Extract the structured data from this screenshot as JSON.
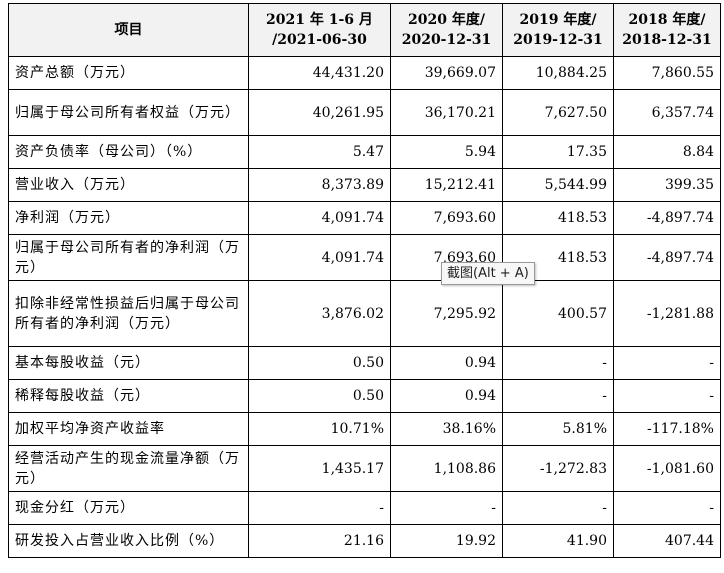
{
  "table": {
    "headers": [
      [
        "项目"
      ],
      [
        "2021 年 1-6 月",
        "/2021-06-30"
      ],
      [
        "2020 年度/",
        "2020-12-31"
      ],
      [
        "2019 年度/",
        "2019-12-31"
      ],
      [
        "2018 年度/",
        "2018-12-31"
      ]
    ],
    "rows": [
      {
        "label": "资产总额（万元）",
        "values": [
          "44,431.20",
          "39,669.07",
          "10,884.25",
          "7,860.55"
        ]
      },
      {
        "label": "归属于母公司所有者权益（万元）",
        "values": [
          "40,261.95",
          "36,170.21",
          "7,627.50",
          "6,357.74"
        ]
      },
      {
        "label": "资产负债率（母公司）（%）",
        "values": [
          "5.47",
          "5.94",
          "17.35",
          "8.84"
        ]
      },
      {
        "label": "营业收入（万元）",
        "values": [
          "8,373.89",
          "15,212.41",
          "5,544.99",
          "399.35"
        ]
      },
      {
        "label": "净利润（万元）",
        "values": [
          "4,091.74",
          "7,693.60",
          "418.53",
          "-4,897.74"
        ]
      },
      {
        "label": "归属于母公司所有者的净利润（万元）",
        "values": [
          "4,091.74",
          "7,693.60",
          "418.53",
          "-4,897.74"
        ]
      },
      {
        "label": "扣除非经常性损益后归属于母公司所有者的净利润（万元）",
        "values": [
          "3,876.02",
          "7,295.92",
          "400.57",
          "-1,281.88"
        ]
      },
      {
        "label": "基本每股收益（元）",
        "values": [
          "0.50",
          "0.94",
          "-",
          "-"
        ]
      },
      {
        "label": "稀释每股收益（元）",
        "values": [
          "0.50",
          "0.94",
          "-",
          "-"
        ]
      },
      {
        "label": "加权平均净资产收益率",
        "values": [
          "10.71%",
          "38.16%",
          "5.81%",
          "-117.18%"
        ]
      },
      {
        "label": "经营活动产生的现金流量净额（万元）",
        "values": [
          "1,435.17",
          "1,108.86",
          "-1,272.83",
          "-1,081.60"
        ]
      },
      {
        "label": "现金分红（万元）",
        "values": [
          "-",
          "-",
          "-",
          "-"
        ]
      },
      {
        "label": "研发投入占营业收入比例（%）",
        "values": [
          "21.16",
          "19.92",
          "41.90",
          "407.44"
        ]
      }
    ]
  },
  "tooltip": {
    "text": "截图(Alt + A)"
  }
}
